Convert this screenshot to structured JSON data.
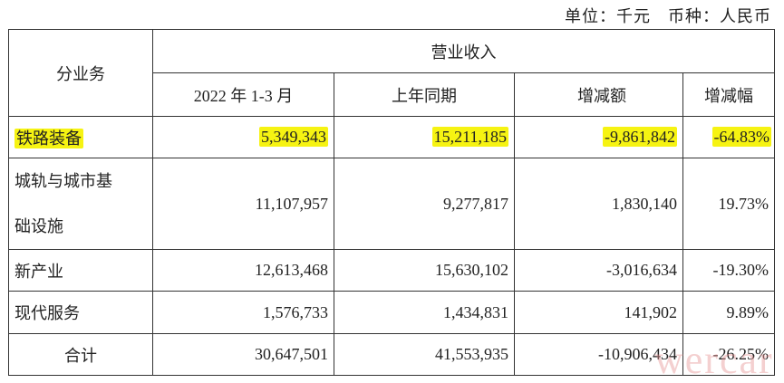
{
  "unit_note": "单位：千元　币种：人民币",
  "header": {
    "segment": "分业务",
    "group": "营业收入",
    "columns": [
      "2022 年 1-3 月",
      "上年同期",
      "增减额",
      "增减幅"
    ]
  },
  "rows": [
    {
      "segment": "铁路装备",
      "current": "5,349,343",
      "prior": "15,211,185",
      "change": "-9,861,842",
      "pct": "-64.83%",
      "highlighted": true
    },
    {
      "segment_line1": "城轨与城市基",
      "segment_line2": "础设施",
      "current": "11,107,957",
      "prior": "9,277,817",
      "change": "1,830,140",
      "pct": "19.73%"
    },
    {
      "segment": "新产业",
      "current": "12,613,468",
      "prior": "15,630,102",
      "change": "-3,016,634",
      "pct": "-19.30%"
    },
    {
      "segment": "现代服务",
      "current": "1,576,733",
      "prior": "1,434,831",
      "change": "141,902",
      "pct": "9.89%"
    },
    {
      "segment": "合计",
      "current": "30,647,501",
      "prior": "41,553,935",
      "change": "-10,906,434",
      "pct": "-26.25%"
    }
  ],
  "highlight_color": "#f6f312",
  "watermark": "wercar"
}
